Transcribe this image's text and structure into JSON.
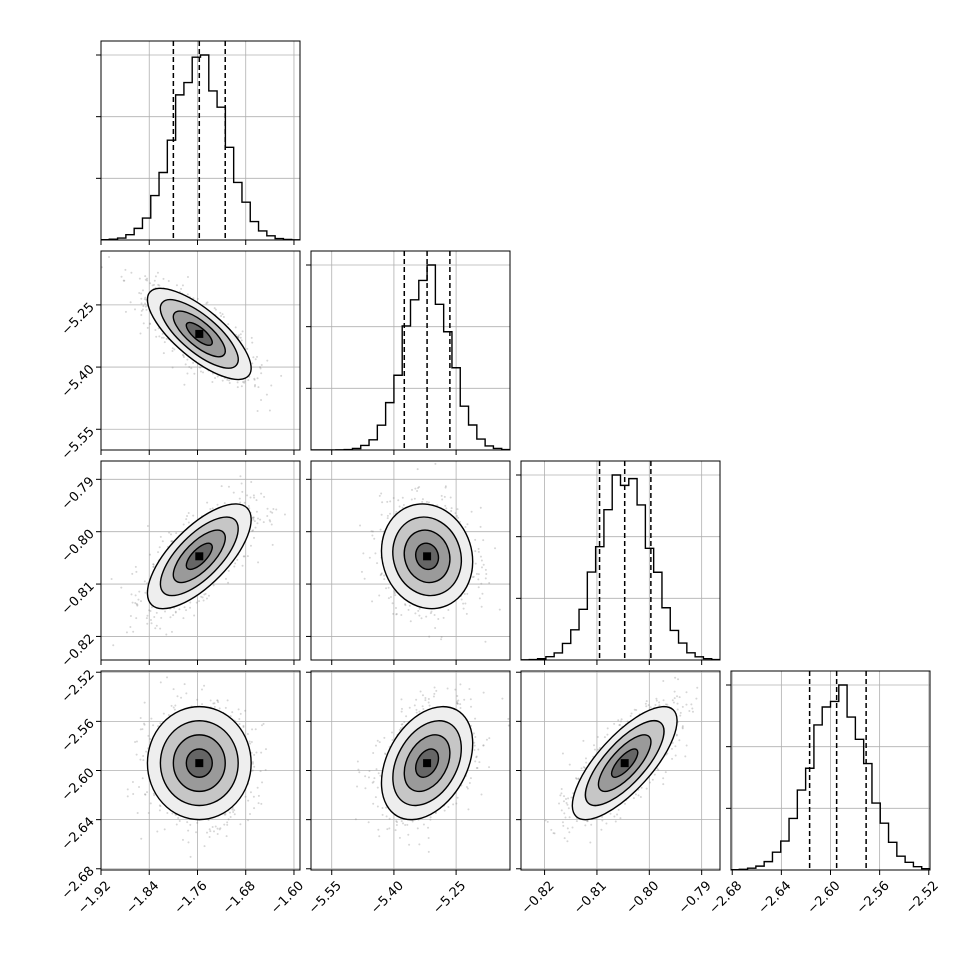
{
  "chart_data": {
    "type": "corner",
    "grid": true,
    "parameters": [
      {
        "ticks": [
          "-1.92",
          "-1.84",
          "-1.76",
          "-1.68",
          "-1.60"
        ],
        "tick_values": [
          -1.92,
          -1.84,
          -1.76,
          -1.68,
          -1.6
        ],
        "range": [
          -1.92,
          -1.59
        ],
        "quantiles": [
          -1.8,
          -1.757,
          -1.714
        ],
        "mean": -1.757,
        "sd": 0.043
      },
      {
        "ticks": [
          "-5.55",
          "-5.40",
          "-5.25"
        ],
        "tick_values": [
          -5.55,
          -5.4,
          -5.25
        ],
        "range": [
          -5.6,
          -5.12
        ],
        "quantiles": [
          -5.375,
          -5.32,
          -5.265
        ],
        "mean": -5.32,
        "sd": 0.055
      },
      {
        "ticks": [
          "-0.82",
          "-0.81",
          "-0.80",
          "-0.79"
        ],
        "tick_values": [
          -0.82,
          -0.81,
          -0.8,
          -0.79
        ],
        "range": [
          -0.8245,
          -0.7865
        ],
        "quantiles": [
          -0.8095,
          -0.8047,
          -0.7997
        ],
        "mean": -0.8047,
        "sd": 0.005
      },
      {
        "ticks": [
          "-2.68",
          "-2.64",
          "-2.60",
          "-2.56",
          "-2.52"
        ],
        "tick_values": [
          -2.68,
          -2.64,
          -2.6,
          -2.56,
          -2.52
        ],
        "range": [
          -2.681,
          -2.519
        ],
        "quantiles": [
          -2.617,
          -2.595,
          -2.571
        ],
        "mean": -2.594,
        "sd": 0.023
      }
    ],
    "correlations": [
      {
        "pair": [
          0,
          1
        ],
        "rho": -0.75
      },
      {
        "pair": [
          0,
          2
        ],
        "rho": 0.7
      },
      {
        "pair": [
          0,
          3
        ],
        "rho": 0.0
      },
      {
        "pair": [
          1,
          2
        ],
        "rho": -0.1
      },
      {
        "pair": [
          1,
          3
        ],
        "rho": 0.35
      },
      {
        "pair": [
          2,
          3
        ],
        "rho": 0.75
      }
    ],
    "contour_levels_sigma": [
      0.5,
      1.0,
      1.5,
      2.0
    ]
  }
}
